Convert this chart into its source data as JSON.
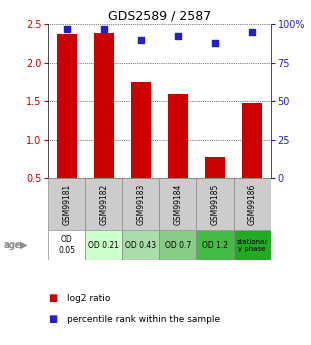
{
  "title": "GDS2589 / 2587",
  "samples": [
    "GSM99181",
    "GSM99182",
    "GSM99183",
    "GSM99184",
    "GSM99185",
    "GSM99186"
  ],
  "log2_ratio": [
    2.37,
    2.38,
    1.75,
    1.6,
    0.78,
    1.48
  ],
  "percentile_rank": [
    97,
    97,
    90,
    92,
    88,
    95
  ],
  "ylim_left": [
    0.5,
    2.5
  ],
  "ylim_right": [
    0,
    100
  ],
  "yticks_left": [
    0.5,
    1.0,
    1.5,
    2.0,
    2.5
  ],
  "yticks_right": [
    0,
    25,
    50,
    75,
    100
  ],
  "bar_color": "#cc0000",
  "dot_color": "#2222cc",
  "bar_width": 0.55,
  "age_labels": [
    "OD\n0.05",
    "OD 0.21",
    "OD 0.43",
    "OD 0.7",
    "OD 1.2",
    "stationar\ny phase"
  ],
  "age_bg_colors": [
    "#ffffff",
    "#ccffcc",
    "#aaddaa",
    "#88cc88",
    "#44bb44",
    "#22aa22"
  ],
  "sample_bg_color": "#cccccc",
  "grid_color": "black",
  "left_tick_color": "#cc0000",
  "right_tick_color": "#2222cc",
  "legend_log2": "log2 ratio",
  "legend_pct": "percentile rank within the sample"
}
